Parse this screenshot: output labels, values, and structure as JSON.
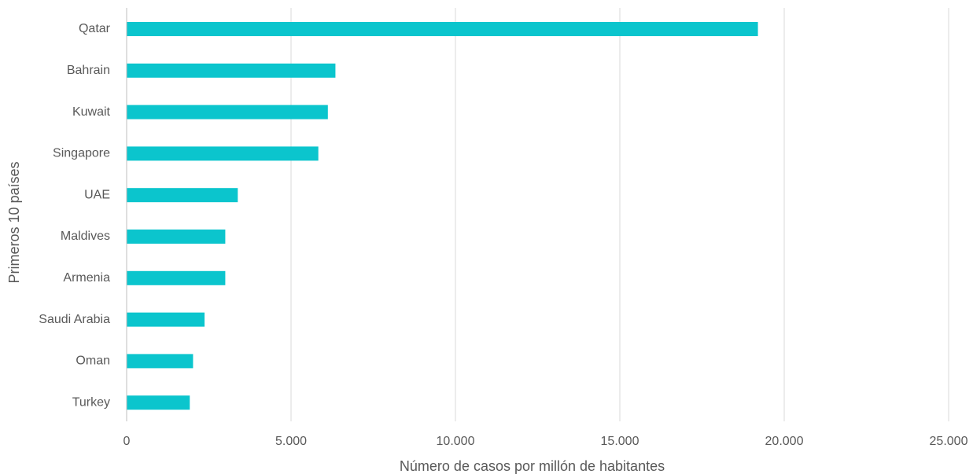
{
  "chart_data": {
    "type": "bar",
    "orientation": "horizontal",
    "categories": [
      "Qatar",
      "Bahrain",
      "Kuwait",
      "Singapore",
      "UAE",
      "Maldives",
      "Armenia",
      "Saudi Arabia",
      "Oman",
      "Turkey"
    ],
    "series": [
      {
        "values": [
          19200,
          6350,
          6120,
          5830,
          3380,
          3000,
          3000,
          2370,
          2020,
          1920
        ],
        "color": "#0BC5CD"
      }
    ],
    "xlabel": "Número de casos por millón de habitantes",
    "ylabel": "Primeros 10 países",
    "xlim": [
      0,
      25000
    ],
    "x_ticks": [
      0,
      5000,
      10000,
      15000,
      20000,
      25000
    ],
    "x_tick_labels": [
      "0",
      "5.000",
      "10.000",
      "15.000",
      "20.000",
      "25.000"
    ],
    "grid": "vertical",
    "legend": "none"
  }
}
